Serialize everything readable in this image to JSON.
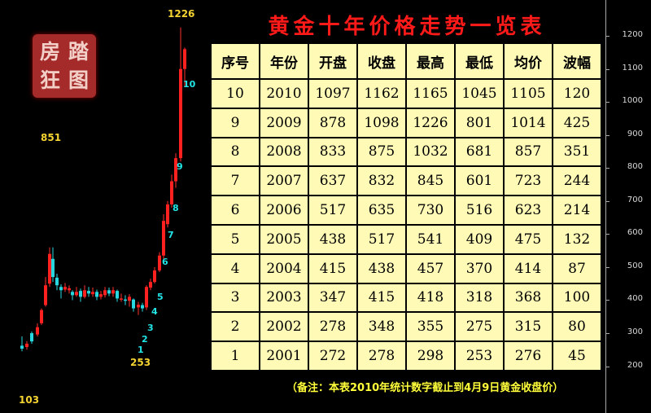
{
  "title": "黄金十年价格走势一览表",
  "seal": [
    "房",
    "踏",
    "狂",
    "图"
  ],
  "note": "（备注：本表2010年统计数字截止到4月9日黄金收盘价）",
  "table": {
    "headers": [
      "序号",
      "年份",
      "开盘",
      "收盘",
      "最高",
      "最低",
      "均价",
      "波幅"
    ],
    "rows": [
      [
        "10",
        "2010",
        "1097",
        "1162",
        "1165",
        "1045",
        "1105",
        "120"
      ],
      [
        "9",
        "2009",
        "878",
        "1098",
        "1226",
        "801",
        "1014",
        "425"
      ],
      [
        "8",
        "2008",
        "833",
        "875",
        "1032",
        "681",
        "857",
        "351"
      ],
      [
        "7",
        "2007",
        "637",
        "832",
        "845",
        "601",
        "723",
        "244"
      ],
      [
        "6",
        "2006",
        "517",
        "635",
        "730",
        "516",
        "623",
        "214"
      ],
      [
        "5",
        "2005",
        "438",
        "517",
        "541",
        "409",
        "475",
        "132"
      ],
      [
        "4",
        "2004",
        "415",
        "438",
        "457",
        "370",
        "414",
        "87"
      ],
      [
        "3",
        "2003",
        "347",
        "415",
        "418",
        "318",
        "368",
        "100"
      ],
      [
        "2",
        "2002",
        "278",
        "348",
        "355",
        "275",
        "315",
        "80"
      ],
      [
        "1",
        "2001",
        "272",
        "278",
        "298",
        "253",
        "276",
        "45"
      ]
    ]
  },
  "chart_data": {
    "type": "candlestick",
    "y_axis_ticks": [
      200,
      300,
      400,
      500,
      600,
      700,
      800,
      900,
      1000,
      1100,
      1200
    ],
    "ylim": [
      100,
      1280
    ],
    "price_labels": [
      "103",
      "851",
      "253",
      "1226"
    ],
    "wave_labels": [
      "1",
      "2",
      "3",
      "4",
      "5",
      "6",
      "7",
      "8",
      "9",
      "10"
    ],
    "colors": {
      "up": "#ff2020",
      "down": "#28d6e0",
      "wick_up": "#ff3030",
      "wick_down": "#28d6e0"
    }
  }
}
